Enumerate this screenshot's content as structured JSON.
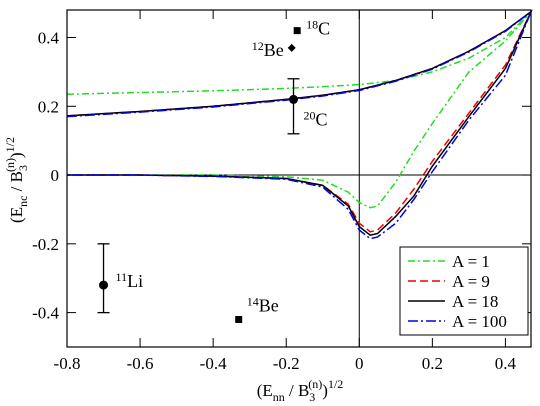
{
  "chart_data": {
    "type": "line",
    "xlabel_parts": [
      "(E",
      "nn",
      " / B",
      "3",
      "(n)",
      ")",
      "1/2"
    ],
    "ylabel_parts": [
      "(E",
      "nc",
      " / B",
      "3",
      "(n)",
      ")",
      "1/2"
    ],
    "x": [
      -0.8,
      -0.6,
      -0.4,
      -0.2,
      -0.1,
      0,
      0.1,
      0.2,
      0.3,
      0.4,
      0.47,
      0.4,
      0.3,
      0.2,
      0.15,
      0.1,
      0.05,
      0.03,
      0,
      -0.03,
      -0.1,
      -0.2,
      -0.4,
      -0.6,
      -0.8
    ],
    "series": [
      {
        "name": "A = 1",
        "color": "#22dd22",
        "dash": "7,3,2,3",
        "values": [
          0.235,
          0.24,
          0.245,
          0.252,
          0.257,
          0.263,
          0.275,
          0.3,
          0.34,
          0.4,
          0.475,
          0.39,
          0.3,
          0.15,
          0.07,
          -0.02,
          -0.09,
          -0.095,
          -0.08,
          -0.05,
          -0.015,
          -0.005,
          0,
          0,
          0
        ]
      },
      {
        "name": "A = 9",
        "color": "#ee0000",
        "dash": "8,4",
        "values": [
          0.172,
          0.185,
          0.2,
          0.22,
          0.232,
          0.248,
          0.275,
          0.31,
          0.36,
          0.42,
          0.475,
          0.32,
          0.18,
          0.04,
          -0.04,
          -0.11,
          -0.16,
          -0.165,
          -0.14,
          -0.085,
          -0.03,
          -0.01,
          -0.003,
          0,
          0
        ]
      },
      {
        "name": "A = 18",
        "color": "#000000",
        "dash": "none",
        "values": [
          0.172,
          0.185,
          0.2,
          0.22,
          0.232,
          0.248,
          0.275,
          0.31,
          0.36,
          0.42,
          0.475,
          0.31,
          0.17,
          0.026,
          -0.06,
          -0.12,
          -0.17,
          -0.175,
          -0.15,
          -0.09,
          -0.03,
          -0.01,
          -0.003,
          0,
          0
        ]
      },
      {
        "name": "A = 100",
        "color": "#0000ee",
        "dash": "10,3,2,3",
        "values": [
          0.17,
          0.183,
          0.198,
          0.218,
          0.23,
          0.246,
          0.273,
          0.308,
          0.358,
          0.418,
          0.475,
          0.29,
          0.16,
          0.01,
          -0.07,
          -0.14,
          -0.18,
          -0.185,
          -0.16,
          -0.1,
          -0.035,
          -0.012,
          -0.004,
          0,
          0
        ]
      }
    ],
    "markers": [
      {
        "mass": "18",
        "element": "C",
        "x": -0.17,
        "y": 0.42,
        "shape": "square"
      },
      {
        "mass": "12",
        "element": "Be",
        "x": -0.185,
        "y": 0.37,
        "shape": "diamond"
      },
      {
        "mass": "20",
        "element": "C",
        "x": -0.18,
        "y": 0.22,
        "shape": "circle",
        "yerr": [
          0.1,
          0.06
        ]
      },
      {
        "mass": "11",
        "element": "Li",
        "x": -0.7,
        "y": -0.32,
        "shape": "circle",
        "yerr": [
          0.08,
          0.12
        ]
      },
      {
        "mass": "14",
        "element": "Be",
        "x": -0.33,
        "y": -0.42,
        "shape": "square"
      }
    ],
    "xlim": [
      -0.8,
      0.47
    ],
    "ylim": [
      -0.5,
      0.48
    ],
    "xticks": [
      -0.8,
      -0.6,
      -0.4,
      -0.2,
      0,
      0.2,
      0.4
    ],
    "yticks": [
      -0.4,
      -0.2,
      0,
      0.2,
      0.4
    ],
    "zero_lines": true,
    "legend": "lower right"
  }
}
